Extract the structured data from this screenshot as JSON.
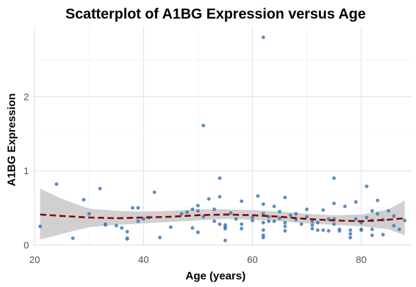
{
  "chart_data": {
    "type": "scatter",
    "title": "Scatterplot of A1BG Expression versus Age",
    "xlabel": "Age (years)",
    "ylabel": "A1BG Expression",
    "xlim": [
      19.7,
      89.3
    ],
    "ylim": [
      -0.02,
      2.95
    ],
    "x_ticks": [
      20,
      40,
      60,
      80
    ],
    "y_ticks": [
      0,
      1,
      2
    ],
    "x_tick_labels": [
      "20",
      "40",
      "60",
      "80"
    ],
    "y_tick_labels": [
      "0",
      "1",
      "2"
    ],
    "grid": true,
    "colors": {
      "points": "#3f7ab5",
      "smooth_line": "#8b0000",
      "confidence_band": "#c8c8c8",
      "grid": "#e3e3e3"
    },
    "points": [
      [
        21,
        0.25
      ],
      [
        24,
        0.82
      ],
      [
        27,
        0.09
      ],
      [
        29,
        0.61
      ],
      [
        30,
        0.42
      ],
      [
        32,
        0.76
      ],
      [
        33,
        0.28
      ],
      [
        33,
        0.27
      ],
      [
        35,
        0.26
      ],
      [
        36,
        0.23
      ],
      [
        37,
        0.18
      ],
      [
        37,
        0.09
      ],
      [
        37,
        0.08
      ],
      [
        38,
        0.5
      ],
      [
        39,
        0.5
      ],
      [
        39,
        0.32
      ],
      [
        40,
        0.35
      ],
      [
        41,
        0.37
      ],
      [
        42,
        0.71
      ],
      [
        43,
        0.1
      ],
      [
        45,
        0.24
      ],
      [
        47,
        0.42
      ],
      [
        48,
        0.44
      ],
      [
        49,
        0.48
      ],
      [
        49,
        0.23
      ],
      [
        50,
        0.53
      ],
      [
        50,
        0.46
      ],
      [
        50,
        0.17
      ],
      [
        51,
        1.61
      ],
      [
        51,
        0.38
      ],
      [
        52,
        0.62
      ],
      [
        53,
        0.32
      ],
      [
        53,
        0.48
      ],
      [
        54,
        0.9
      ],
      [
        54,
        0.65
      ],
      [
        54,
        0.28
      ],
      [
        55,
        0.27
      ],
      [
        55,
        0.22
      ],
      [
        55,
        0.24
      ],
      [
        55,
        0.06
      ],
      [
        56,
        0.43
      ],
      [
        57,
        0.35
      ],
      [
        58,
        0.59
      ],
      [
        58,
        0.28
      ],
      [
        58,
        0.22
      ],
      [
        60,
        0.37
      ],
      [
        60,
        0.33
      ],
      [
        61,
        0.66
      ],
      [
        62,
        2.8
      ],
      [
        62,
        0.55
      ],
      [
        62,
        0.42
      ],
      [
        62,
        0.3
      ],
      [
        62,
        0.2
      ],
      [
        62,
        0.13
      ],
      [
        62,
        0.1
      ],
      [
        63,
        0.38
      ],
      [
        63,
        0.32
      ],
      [
        64,
        0.52
      ],
      [
        64,
        0.32
      ],
      [
        65,
        0.45
      ],
      [
        65,
        0.36
      ],
      [
        66,
        0.64
      ],
      [
        66,
        0.3
      ],
      [
        66,
        0.25
      ],
      [
        66,
        0.19
      ],
      [
        67,
        0.4
      ],
      [
        68,
        0.42
      ],
      [
        68,
        0.34
      ],
      [
        69,
        0.28
      ],
      [
        70,
        0.48
      ],
      [
        70,
        0.38
      ],
      [
        71,
        0.32
      ],
      [
        71,
        0.27
      ],
      [
        71,
        0.22
      ],
      [
        72,
        0.2
      ],
      [
        72,
        0.3
      ],
      [
        73,
        0.47
      ],
      [
        73,
        0.2
      ],
      [
        74,
        0.35
      ],
      [
        74,
        0.19
      ],
      [
        75,
        0.9
      ],
      [
        75,
        0.56
      ],
      [
        75,
        0.35
      ],
      [
        75,
        0.28
      ],
      [
        76,
        0.21
      ],
      [
        76,
        0.19
      ],
      [
        77,
        0.52
      ],
      [
        78,
        0.2
      ],
      [
        78,
        0.15
      ],
      [
        78,
        0.1
      ],
      [
        79,
        0.58
      ],
      [
        79,
        0.35
      ],
      [
        80,
        0.3
      ],
      [
        80,
        0.21
      ],
      [
        80,
        0.2
      ],
      [
        81,
        0.79
      ],
      [
        81,
        0.37
      ],
      [
        82,
        0.46
      ],
      [
        82,
        0.33
      ],
      [
        82,
        0.21
      ],
      [
        82,
        0.13
      ],
      [
        83,
        0.6
      ],
      [
        83,
        0.42
      ],
      [
        84,
        0.34
      ],
      [
        84,
        0.14
      ],
      [
        85,
        0.46
      ],
      [
        86,
        0.39
      ],
      [
        86,
        0.26
      ],
      [
        87,
        0.21
      ],
      [
        88,
        0.33
      ]
    ],
    "smooth": {
      "x": [
        21,
        25,
        30,
        35,
        40,
        45,
        50,
        55,
        60,
        65,
        70,
        75,
        80,
        85,
        88
      ],
      "y": [
        0.41,
        0.39,
        0.37,
        0.36,
        0.37,
        0.38,
        0.4,
        0.41,
        0.4,
        0.38,
        0.35,
        0.33,
        0.32,
        0.34,
        0.36
      ],
      "lower": [
        0.07,
        0.15,
        0.24,
        0.27,
        0.29,
        0.31,
        0.33,
        0.35,
        0.34,
        0.32,
        0.29,
        0.27,
        0.25,
        0.21,
        0.13
      ],
      "upper": [
        0.76,
        0.62,
        0.49,
        0.46,
        0.45,
        0.46,
        0.48,
        0.48,
        0.47,
        0.45,
        0.42,
        0.4,
        0.41,
        0.48,
        0.6
      ]
    }
  }
}
